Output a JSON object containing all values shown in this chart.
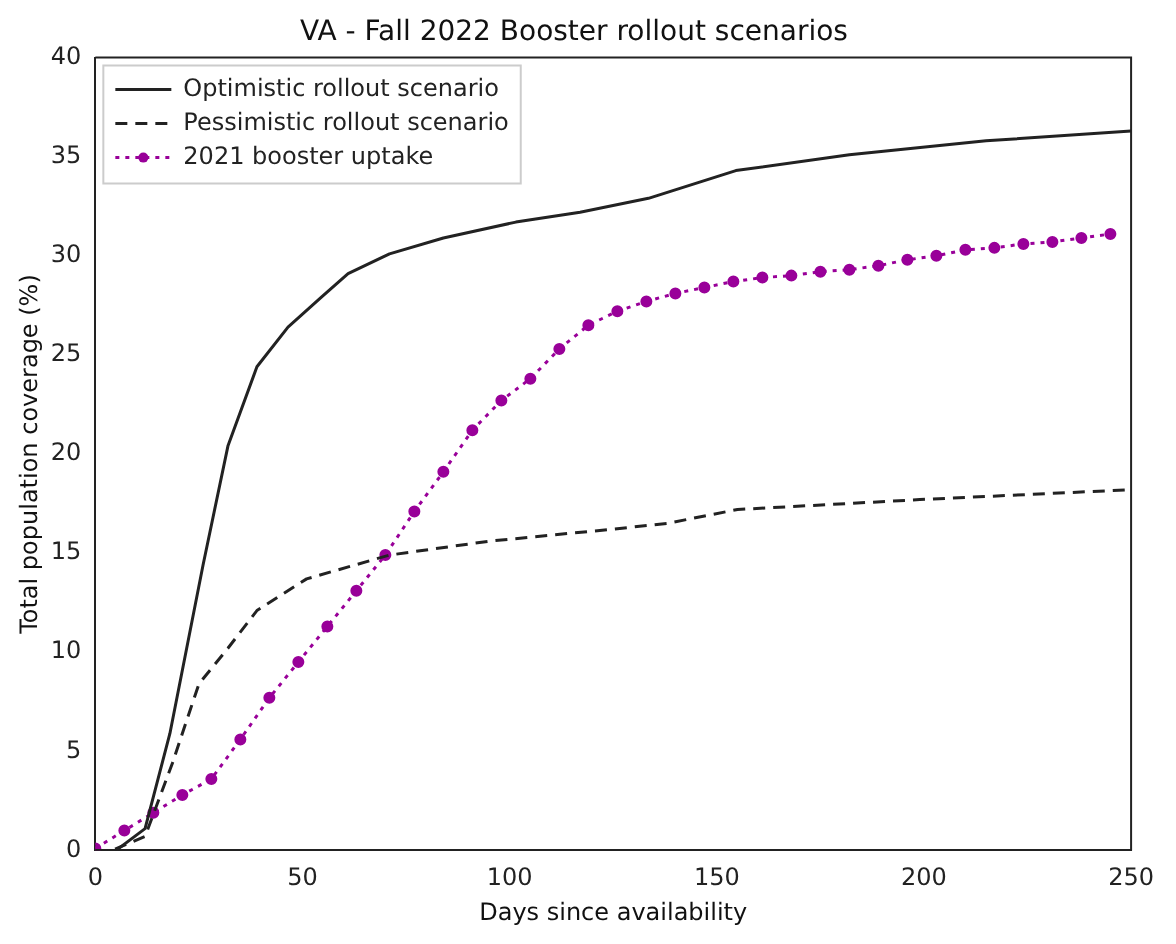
{
  "chart_data": {
    "type": "line",
    "title": "VA - Fall 2022 Booster rollout scenarios",
    "xlabel": "Days since availability",
    "ylabel": "Total population coverage (%)",
    "xlim": [
      0,
      250
    ],
    "xticks": [
      0,
      50,
      100,
      150,
      200,
      250
    ],
    "ylim": [
      0,
      40
    ],
    "yticks": [
      0,
      5,
      10,
      15,
      20,
      25,
      30,
      35,
      40
    ],
    "grid": false,
    "legend": "top left",
    "series": [
      {
        "name": "Optimistic rollout scenario",
        "color": "#222222",
        "line_style": "solid",
        "marker": "none",
        "x": [
          0,
          5,
          12,
          18,
          26,
          32,
          39,
          46.5,
          54.5,
          61,
          71,
          84,
          101.5,
          117,
          133.5,
          154.6,
          182,
          215,
          250
        ],
        "values": [
          0,
          0,
          1.1,
          5.9,
          14.4,
          20.4,
          24.4,
          26.4,
          27.9,
          29.1,
          30.1,
          30.9,
          31.7,
          32.2,
          32.9,
          34.3,
          35.1,
          35.8,
          36.3
        ]
      },
      {
        "name": "Pessimistic rollout scenario",
        "color": "#222222",
        "line_style": "dashed",
        "marker": "none",
        "x": [
          0,
          4,
          12,
          18.6,
          25,
          32,
          39,
          51,
          71,
          95,
          124.5,
          138,
          155,
          199,
          250
        ],
        "values": [
          0,
          0,
          0.7,
          4.4,
          8.4,
          10.2,
          12.1,
          13.7,
          14.9,
          15.6,
          16.2,
          16.5,
          17.2,
          17.7,
          18.2
        ]
      },
      {
        "name": "2021 booster uptake",
        "color": "#990099",
        "line_style": "dotted",
        "marker": "circle",
        "x": [
          0,
          7,
          14,
          21,
          28,
          35,
          42,
          49,
          56,
          63,
          70,
          77,
          84,
          91,
          98,
          105,
          112,
          119,
          126,
          133,
          140,
          147,
          154,
          161,
          168,
          175,
          182,
          189,
          196,
          203,
          210,
          217,
          224,
          231,
          238,
          245
        ],
        "values": [
          0.1,
          1.0,
          1.9,
          2.8,
          3.6,
          5.6,
          7.7,
          9.5,
          11.3,
          13.1,
          14.9,
          17.1,
          19.1,
          21.2,
          22.7,
          23.8,
          25.3,
          26.5,
          27.2,
          27.7,
          28.1,
          28.4,
          28.7,
          28.9,
          29.0,
          29.2,
          29.3,
          29.5,
          29.8,
          30.0,
          30.3,
          30.4,
          30.6,
          30.7,
          30.9,
          31.1
        ]
      }
    ]
  }
}
